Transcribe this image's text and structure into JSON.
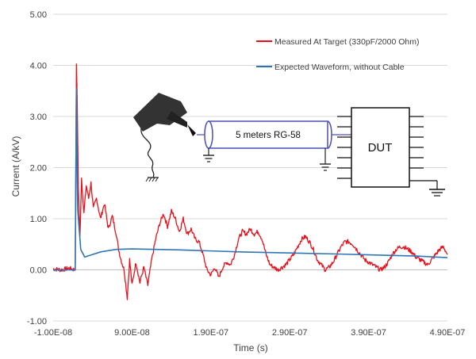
{
  "chart_data": {
    "type": "line",
    "title": "",
    "xlabel": "Time (s)",
    "ylabel": "Current (A/kV)",
    "xlim": [
      -1e-08,
      4.9e-07
    ],
    "ylim": [
      -1.0,
      5.0
    ],
    "x_tick_labels": [
      "-1.00E-08",
      "9.00E-08",
      "1.90E-07",
      "2.90E-07",
      "3.90E-07",
      "4.90E-07"
    ],
    "x_ticks": [
      -1e-08,
      9e-08,
      1.9e-07,
      2.9e-07,
      3.9e-07,
      4.9e-07
    ],
    "y_tick_labels": [
      "-1.00",
      "0.00",
      "1.00",
      "2.00",
      "3.00",
      "4.00",
      "5.00"
    ],
    "y_ticks": [
      -1,
      0,
      1,
      2,
      3,
      4,
      5
    ],
    "grid": "horizontal",
    "legend_position": "top-right",
    "series": [
      {
        "name": "Measured At Target (330pF/2000 Ohm)",
        "color": "#e8101a",
        "x": [
          -1e-08,
          0,
          1e-08,
          1.8e-08,
          1.95e-08,
          2.05e-08,
          2.2e-08,
          2.4e-08,
          2.6e-08,
          2.9e-08,
          3.2e-08,
          3.5e-08,
          3.8e-08,
          4.1e-08,
          4.5e-08,
          5e-08,
          5.5e-08,
          6e-08,
          6.5e-08,
          7e-08,
          7.3e-08,
          7.6e-08,
          8e-08,
          8.4e-08,
          8.7e-08,
          9e-08,
          9.5e-08,
          1e-07,
          1.05e-07,
          1.1e-07,
          1.15e-07,
          1.2e-07,
          1.25e-07,
          1.3e-07,
          1.35e-07,
          1.4e-07,
          1.45e-07,
          1.5e-07,
          1.55e-07,
          1.6e-07,
          1.65e-07,
          1.7e-07,
          1.75e-07,
          1.8e-07,
          1.85e-07,
          1.9e-07,
          1.95e-07,
          2e-07,
          2.05e-07,
          2.1e-07,
          2.15e-07,
          2.2e-07,
          2.25e-07,
          2.3e-07,
          2.35e-07,
          2.4e-07,
          2.45e-07,
          2.5e-07,
          2.55e-07,
          2.6e-07,
          2.65e-07,
          2.7e-07,
          2.75e-07,
          2.8e-07,
          2.85e-07,
          2.9e-07,
          2.95e-07,
          3e-07,
          3.05e-07,
          3.1e-07,
          3.15e-07,
          3.2e-07,
          3.25e-07,
          3.3e-07,
          3.35e-07,
          3.4e-07,
          3.45e-07,
          3.5e-07,
          3.55e-07,
          3.6e-07,
          3.65e-07,
          3.7e-07,
          3.75e-07,
          3.8e-07,
          3.85e-07,
          3.9e-07,
          3.95e-07,
          4e-07,
          4.05e-07,
          4.1e-07,
          4.15e-07,
          4.2e-07,
          4.25e-07,
          4.3e-07,
          4.35e-07,
          4.4e-07,
          4.45e-07,
          4.5e-07,
          4.55e-07,
          4.6e-07,
          4.65e-07,
          4.7e-07,
          4.75e-07,
          4.8e-07,
          4.85e-07,
          4.9e-07
        ],
        "y": [
          0.02,
          0.0,
          0.03,
          0.0,
          4.05,
          3.3,
          1.6,
          0.65,
          1.8,
          1.1,
          1.65,
          1.4,
          1.7,
          1.2,
          1.4,
          1.0,
          1.3,
          0.8,
          1.05,
          0.7,
          0.4,
          0.2,
          0.0,
          -0.55,
          0.2,
          -0.3,
          0.15,
          -0.25,
          0.05,
          -0.3,
          0.2,
          0.6,
          0.9,
          1.1,
          0.85,
          1.15,
          1.0,
          0.75,
          1.0,
          0.7,
          0.8,
          0.6,
          0.55,
          0.3,
          0.0,
          -0.1,
          0.05,
          -0.15,
          0.05,
          0.15,
          0.1,
          0.3,
          0.6,
          0.75,
          0.7,
          0.8,
          0.7,
          0.75,
          0.6,
          0.3,
          0.1,
          0.05,
          0.0,
          0.05,
          0.1,
          0.2,
          0.3,
          0.45,
          0.6,
          0.65,
          0.55,
          0.4,
          0.2,
          0.1,
          0.0,
          0.05,
          0.15,
          0.3,
          0.45,
          0.55,
          0.55,
          0.5,
          0.4,
          0.3,
          0.2,
          0.15,
          0.1,
          0.05,
          0.0,
          0.05,
          0.15,
          0.3,
          0.4,
          0.45,
          0.45,
          0.4,
          0.35,
          0.25,
          0.2,
          0.15,
          0.1,
          0.2,
          0.3,
          0.4,
          0.45,
          0.3
        ]
      },
      {
        "name": "Expected Waveform, without Cable",
        "color": "#2e75b6",
        "x": [
          -1e-08,
          1.8e-08,
          1.95e-08,
          2.1e-08,
          2.5e-08,
          3e-08,
          4e-08,
          5e-08,
          7e-08,
          9e-08,
          1.2e-07,
          1.5e-07,
          1.9e-07,
          2.3e-07,
          2.9e-07,
          3.5e-07,
          4e-07,
          4.5e-07,
          4.9e-07
        ],
        "y": [
          0.0,
          0.0,
          3.55,
          1.2,
          0.4,
          0.25,
          0.3,
          0.35,
          0.4,
          0.41,
          0.4,
          0.39,
          0.37,
          0.35,
          0.33,
          0.31,
          0.29,
          0.27,
          0.24
        ]
      }
    ],
    "annotations": {
      "cable_label": "5 meters RG-58",
      "device_label": "DUT"
    }
  }
}
